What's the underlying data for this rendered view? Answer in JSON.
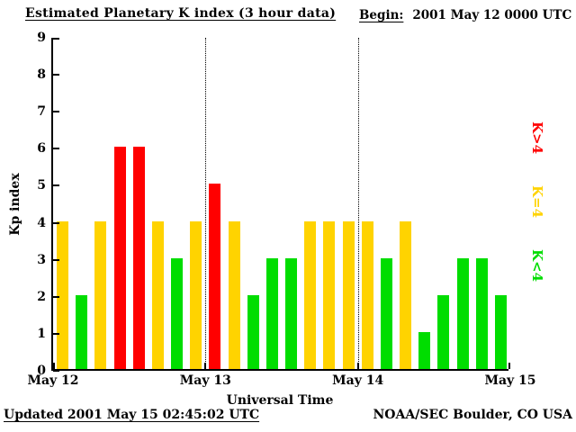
{
  "header": {
    "title": "Estimated Planetary K index (3 hour data)",
    "begin_label": "Begin:",
    "begin_value": "2001 May 12 0000 UTC"
  },
  "chart_data": {
    "type": "bar",
    "title": "Estimated Planetary K index (3 hour data)",
    "xlabel": "Universal Time",
    "ylabel": "Kp index",
    "ylim": [
      0,
      9
    ],
    "yticks": [
      0,
      1,
      2,
      3,
      4,
      5,
      6,
      7,
      8,
      9
    ],
    "xticks": [
      "May 12",
      "May 13",
      "May 14",
      "May 15"
    ],
    "bars_per_day": 8,
    "interval_hours": 3,
    "values": [
      4,
      2,
      4,
      6,
      6,
      4,
      3,
      4,
      5,
      4,
      2,
      3,
      3,
      4,
      4,
      4,
      4,
      3,
      4,
      1,
      2,
      3,
      3,
      2
    ],
    "color_rule": "green if K<4, yellow if K=4, red if K>4",
    "colors": {
      "low": "#00dd00",
      "mid": "#ffd300",
      "high": "#ff0000",
      "axis": "#000000",
      "background": "#ffffff"
    },
    "legend": [
      {
        "label": "K>4",
        "color": "#ff0000"
      },
      {
        "label": "K=4",
        "color": "#ffd300"
      },
      {
        "label": "K<4",
        "color": "#00dd00"
      }
    ],
    "grid": "dotted vertical day separators at May 13 and May 14",
    "legend_position": "right, rotated 90deg"
  },
  "footer": {
    "updated": "Updated 2001 May 15 02:45:02 UTC",
    "source": "NOAA/SEC Boulder, CO USA"
  }
}
